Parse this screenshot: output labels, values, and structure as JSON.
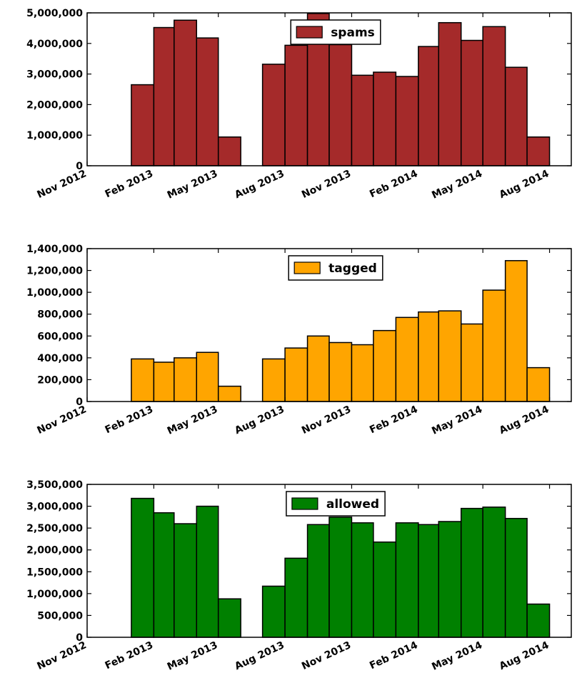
{
  "chart_data": [
    {
      "type": "bar",
      "legend_placement": "top-center",
      "series": [
        {
          "name": "spams",
          "color": "#a52a2a",
          "points": [
            {
              "x": "2013-01-15",
              "y": 2650000
            },
            {
              "x": "2013-02-15",
              "y": 4520000
            },
            {
              "x": "2013-03-15",
              "y": 4760000
            },
            {
              "x": "2013-04-15",
              "y": 4180000
            },
            {
              "x": "2013-05-15",
              "y": 940000
            },
            {
              "x": "2013-07-15",
              "y": 3320000
            },
            {
              "x": "2013-08-15",
              "y": 3940000
            },
            {
              "x": "2013-09-15",
              "y": 4980000
            },
            {
              "x": "2013-10-15",
              "y": 3960000
            },
            {
              "x": "2013-11-15",
              "y": 2960000
            },
            {
              "x": "2013-12-15",
              "y": 3060000
            },
            {
              "x": "2014-01-15",
              "y": 2920000
            },
            {
              "x": "2014-02-15",
              "y": 3900000
            },
            {
              "x": "2014-03-15",
              "y": 4680000
            },
            {
              "x": "2014-04-15",
              "y": 4100000
            },
            {
              "x": "2014-05-15",
              "y": 4550000
            },
            {
              "x": "2014-06-15",
              "y": 3220000
            },
            {
              "x": "2014-07-15",
              "y": 940000
            }
          ]
        }
      ],
      "x_range": [
        "2012-11-01",
        "2014-08-31"
      ],
      "xticks": [
        {
          "label": "Nov 2012",
          "x": "2012-11-01"
        },
        {
          "label": "Feb 2013",
          "x": "2013-02-01"
        },
        {
          "label": "May 2013",
          "x": "2013-05-01"
        },
        {
          "label": "Aug 2013",
          "x": "2013-08-01"
        },
        {
          "label": "Nov 2013",
          "x": "2013-11-01"
        },
        {
          "label": "Feb 2014",
          "x": "2014-02-01"
        },
        {
          "label": "May 2014",
          "x": "2014-05-01"
        },
        {
          "label": "Aug 2014",
          "x": "2014-08-01"
        }
      ],
      "ylim": [
        0,
        5000000
      ],
      "yticks": [
        {
          "label": "0",
          "value": 0
        },
        {
          "label": "1,000,000",
          "value": 1000000
        },
        {
          "label": "2,000,000",
          "value": 2000000
        },
        {
          "label": "3,000,000",
          "value": 3000000
        },
        {
          "label": "4,000,000",
          "value": 4000000
        },
        {
          "label": "5,000,000",
          "value": 5000000
        }
      ],
      "grid": false
    },
    {
      "type": "bar",
      "legend_placement": "top-center",
      "series": [
        {
          "name": "tagged",
          "color": "#ffa500",
          "points": [
            {
              "x": "2013-01-15",
              "y": 390000
            },
            {
              "x": "2013-02-15",
              "y": 360000
            },
            {
              "x": "2013-03-15",
              "y": 400000
            },
            {
              "x": "2013-04-15",
              "y": 450000
            },
            {
              "x": "2013-05-15",
              "y": 140000
            },
            {
              "x": "2013-07-15",
              "y": 390000
            },
            {
              "x": "2013-08-15",
              "y": 490000
            },
            {
              "x": "2013-09-15",
              "y": 600000
            },
            {
              "x": "2013-10-15",
              "y": 540000
            },
            {
              "x": "2013-11-15",
              "y": 520000
            },
            {
              "x": "2013-12-15",
              "y": 650000
            },
            {
              "x": "2014-01-15",
              "y": 770000
            },
            {
              "x": "2014-02-15",
              "y": 820000
            },
            {
              "x": "2014-03-15",
              "y": 830000
            },
            {
              "x": "2014-04-15",
              "y": 710000
            },
            {
              "x": "2014-05-15",
              "y": 1020000
            },
            {
              "x": "2014-06-15",
              "y": 1290000
            },
            {
              "x": "2014-07-15",
              "y": 310000
            }
          ]
        }
      ],
      "x_range": [
        "2012-11-01",
        "2014-08-31"
      ],
      "xticks": [
        {
          "label": "Nov 2012",
          "x": "2012-11-01"
        },
        {
          "label": "Feb 2013",
          "x": "2013-02-01"
        },
        {
          "label": "May 2013",
          "x": "2013-05-01"
        },
        {
          "label": "Aug 2013",
          "x": "2013-08-01"
        },
        {
          "label": "Nov 2013",
          "x": "2013-11-01"
        },
        {
          "label": "Feb 2014",
          "x": "2014-02-01"
        },
        {
          "label": "May 2014",
          "x": "2014-05-01"
        },
        {
          "label": "Aug 2014",
          "x": "2014-08-01"
        }
      ],
      "ylim": [
        0,
        1400000
      ],
      "yticks": [
        {
          "label": "0",
          "value": 0
        },
        {
          "label": "200,000",
          "value": 200000
        },
        {
          "label": "400,000",
          "value": 400000
        },
        {
          "label": "600,000",
          "value": 600000
        },
        {
          "label": "800,000",
          "value": 800000
        },
        {
          "label": "1,000,000",
          "value": 1000000
        },
        {
          "label": "1,200,000",
          "value": 1200000
        },
        {
          "label": "1,400,000",
          "value": 1400000
        }
      ],
      "grid": false
    },
    {
      "type": "bar",
      "legend_placement": "top-center",
      "series": [
        {
          "name": "allowed",
          "color": "#008000",
          "points": [
            {
              "x": "2013-01-15",
              "y": 3180000
            },
            {
              "x": "2013-02-15",
              "y": 2850000
            },
            {
              "x": "2013-03-15",
              "y": 2600000
            },
            {
              "x": "2013-04-15",
              "y": 3000000
            },
            {
              "x": "2013-05-15",
              "y": 880000
            },
            {
              "x": "2013-07-15",
              "y": 1170000
            },
            {
              "x": "2013-08-15",
              "y": 1810000
            },
            {
              "x": "2013-09-15",
              "y": 2580000
            },
            {
              "x": "2013-10-15",
              "y": 2750000
            },
            {
              "x": "2013-11-15",
              "y": 2620000
            },
            {
              "x": "2013-12-15",
              "y": 2180000
            },
            {
              "x": "2014-01-15",
              "y": 2620000
            },
            {
              "x": "2014-02-15",
              "y": 2580000
            },
            {
              "x": "2014-03-15",
              "y": 2650000
            },
            {
              "x": "2014-04-15",
              "y": 2950000
            },
            {
              "x": "2014-05-15",
              "y": 2980000
            },
            {
              "x": "2014-06-15",
              "y": 2720000
            },
            {
              "x": "2014-07-15",
              "y": 760000
            }
          ]
        }
      ],
      "x_range": [
        "2012-11-01",
        "2014-08-31"
      ],
      "xticks": [
        {
          "label": "Nov 2012",
          "x": "2012-11-01"
        },
        {
          "label": "Feb 2013",
          "x": "2013-02-01"
        },
        {
          "label": "May 2013",
          "x": "2013-05-01"
        },
        {
          "label": "Aug 2013",
          "x": "2013-08-01"
        },
        {
          "label": "Nov 2013",
          "x": "2013-11-01"
        },
        {
          "label": "Feb 2014",
          "x": "2014-02-01"
        },
        {
          "label": "May 2014",
          "x": "2014-05-01"
        },
        {
          "label": "Aug 2014",
          "x": "2014-08-01"
        }
      ],
      "ylim": [
        0,
        3500000
      ],
      "yticks": [
        {
          "label": "0",
          "value": 0
        },
        {
          "label": "500,000",
          "value": 500000
        },
        {
          "label": "1,000,000",
          "value": 1000000
        },
        {
          "label": "1,500,000",
          "value": 1500000
        },
        {
          "label": "2,000,000",
          "value": 2000000
        },
        {
          "label": "2,500,000",
          "value": 2500000
        },
        {
          "label": "3,000,000",
          "value": 3000000
        },
        {
          "label": "3,500,000",
          "value": 3500000
        }
      ],
      "grid": false
    }
  ]
}
